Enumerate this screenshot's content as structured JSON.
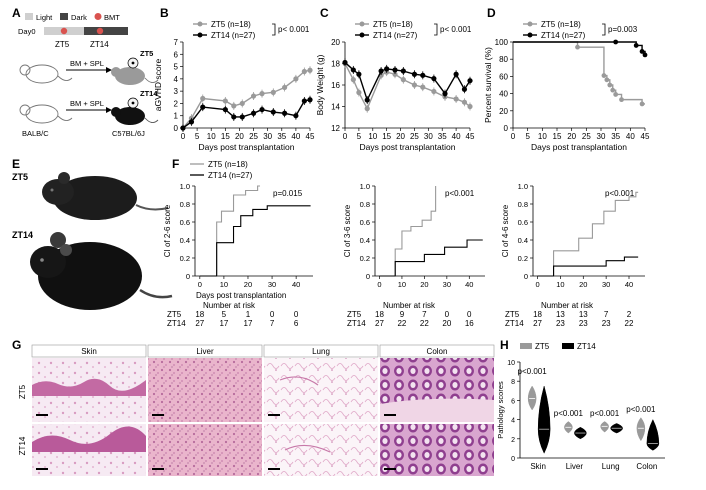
{
  "panels": {
    "A": {
      "letter": "A",
      "legend": [
        "Light",
        "Dark",
        "BMT"
      ],
      "day0": "Day0",
      "zt5": "ZT5",
      "zt14": "ZT14",
      "bmspl": "BM + SPL",
      "donor": "BALB/C",
      "recipient": "C57BL/6J"
    },
    "B": {
      "letter": "B"
    },
    "C": {
      "letter": "C"
    },
    "D": {
      "letter": "D"
    },
    "E": {
      "letter": "E",
      "label_top": "ZT5",
      "label_bottom": "ZT14"
    },
    "F": {
      "letter": "F",
      "nar_title": "Number at risk",
      "xlabel": "Days post transplantation"
    },
    "G": {
      "letter": "G",
      "tissues": [
        "Skin",
        "Liver",
        "Lung",
        "Colon"
      ],
      "rows": [
        "ZT5",
        "ZT14"
      ]
    },
    "H": {
      "letter": "H",
      "legend": [
        "ZT5",
        "ZT14"
      ],
      "ylabel": "Pathology scores",
      "pvalues": [
        "p<0.001",
        "p<0.001",
        "p<0.001",
        "p<0.001"
      ]
    }
  },
  "colors": {
    "zt5": "#9a9a9a",
    "zt14": "#000000",
    "he_pink": "#e7a9c6",
    "he_purple": "#a05aa0"
  },
  "chart_data": [
    {
      "id": "B",
      "type": "line",
      "ylabel": "aGVHD score",
      "xlabel": "Days post transplantation",
      "ylim": [
        0,
        7
      ],
      "xlim": [
        0,
        45
      ],
      "xticks": [
        0,
        5,
        10,
        15,
        20,
        25,
        30,
        35,
        40,
        45
      ],
      "yticks": [
        0,
        1,
        2,
        3,
        4,
        5,
        6,
        7
      ],
      "legend": [
        "ZT5 (n=18)",
        "ZT14 (n=27)"
      ],
      "pvalue": "p< 0.001",
      "series": [
        {
          "name": "ZT5",
          "x": [
            0,
            3,
            7,
            15,
            18,
            21,
            25,
            28,
            32,
            36,
            40,
            43,
            45
          ],
          "y": [
            0,
            0.8,
            2.4,
            2.2,
            1.8,
            2.0,
            2.6,
            2.8,
            2.9,
            3.3,
            4.0,
            4.6,
            4.7
          ]
        },
        {
          "name": "ZT14",
          "x": [
            0,
            3,
            7,
            15,
            18,
            21,
            25,
            28,
            32,
            36,
            40,
            43,
            45
          ],
          "y": [
            0,
            0.5,
            1.7,
            1.5,
            0.9,
            0.9,
            1.2,
            1.5,
            1.3,
            1.2,
            1.0,
            2.2,
            2.3
          ]
        }
      ]
    },
    {
      "id": "C",
      "type": "line",
      "ylabel": "Body Weight (g)",
      "xlabel": "Days post transplantation",
      "ylim": [
        12,
        20
      ],
      "xlim": [
        0,
        45
      ],
      "xticks": [
        0,
        5,
        10,
        15,
        20,
        25,
        30,
        35,
        40,
        45
      ],
      "yticks": [
        12,
        14,
        16,
        18,
        20
      ],
      "legend": [
        "ZT5 (n=18)",
        "ZT14 (n=27)"
      ],
      "pvalue": "p< 0.001",
      "series": [
        {
          "name": "ZT5",
          "x": [
            0,
            3,
            5,
            8,
            13,
            15,
            18,
            21,
            25,
            28,
            32,
            36,
            40,
            43,
            45
          ],
          "y": [
            18.0,
            16.5,
            15.3,
            13.8,
            16.9,
            17.2,
            17.0,
            16.5,
            16.0,
            15.8,
            15.4,
            14.9,
            14.7,
            14.4,
            14.0
          ]
        },
        {
          "name": "ZT14",
          "x": [
            0,
            3,
            5,
            8,
            13,
            15,
            18,
            21,
            25,
            28,
            32,
            36,
            40,
            43,
            45
          ],
          "y": [
            18.1,
            17.4,
            17.0,
            14.6,
            17.3,
            17.5,
            17.4,
            17.3,
            17.0,
            16.9,
            16.6,
            15.2,
            17.0,
            15.6,
            16.4
          ]
        }
      ]
    },
    {
      "id": "D",
      "type": "line",
      "ylabel": "Percent survival (%)",
      "xlabel": "Days post transplantation",
      "ylim": [
        0,
        100
      ],
      "xlim": [
        0,
        45
      ],
      "xticks": [
        0,
        5,
        10,
        15,
        20,
        25,
        30,
        35,
        40,
        45
      ],
      "yticks": [
        0,
        20,
        40,
        60,
        80,
        100
      ],
      "legend": [
        "ZT5 (n=18)",
        "ZT14 (n=27)"
      ],
      "pvalue": "p=0.003",
      "series": [
        {
          "name": "ZT5",
          "x": [
            0,
            22,
            31,
            32,
            33,
            34,
            35,
            37,
            44,
            45
          ],
          "y": [
            100,
            94,
            61,
            56,
            50,
            44,
            39,
            33,
            28,
            28
          ]
        },
        {
          "name": "ZT14",
          "x": [
            0,
            35,
            42,
            44,
            45
          ],
          "y": [
            100,
            100,
            96,
            89,
            85
          ]
        }
      ]
    },
    {
      "id": "F1",
      "type": "line",
      "ylabel": "CI of 2-6 score",
      "ylim": [
        0,
        1.0
      ],
      "xlim": [
        -2,
        47
      ],
      "xticks": [
        0,
        10,
        20,
        30,
        40
      ],
      "yticks": [
        0,
        0.2,
        0.4,
        0.6,
        0.8,
        1.0
      ],
      "legend": [
        "ZT5 (n=18)",
        "ZT14 (n=27)"
      ],
      "pvalue": "p=0.015",
      "series": [
        {
          "name": "ZT5",
          "x": [
            0,
            7,
            7,
            9,
            9,
            14,
            14,
            19,
            19,
            24,
            24,
            25
          ],
          "y": [
            0,
            0,
            0.6,
            0.6,
            0.72,
            0.72,
            0.9,
            0.9,
            0.95,
            0.95,
            1.0,
            1.0
          ]
        },
        {
          "name": "ZT14",
          "x": [
            0,
            7,
            7,
            14,
            14,
            17,
            17,
            22,
            22,
            28,
            28,
            46
          ],
          "y": [
            0,
            0,
            0.37,
            0.37,
            0.55,
            0.55,
            0.67,
            0.67,
            0.74,
            0.74,
            0.78,
            0.78
          ]
        }
      ],
      "at_risk": {
        "times": [
          "0",
          "10",
          "20",
          "30",
          "40"
        ],
        "rows": [
          {
            "label": "ZT5",
            "values": [
              "18",
              "5",
              "1",
              "0",
              "0"
            ]
          },
          {
            "label": "ZT14",
            "values": [
              "27",
              "17",
              "17",
              "7",
              "6"
            ]
          }
        ]
      }
    },
    {
      "id": "F2",
      "type": "line",
      "ylabel": "CI of 3-6 score",
      "ylim": [
        0,
        1.0
      ],
      "xlim": [
        -2,
        47
      ],
      "xticks": [
        0,
        10,
        20,
        30,
        40
      ],
      "yticks": [
        0,
        0.2,
        0.4,
        0.6,
        0.8,
        1.0
      ],
      "pvalue": "p<0.001",
      "series": [
        {
          "name": "ZT5",
          "x": [
            0,
            7,
            7,
            10,
            10,
            14,
            14,
            19,
            19,
            23,
            23,
            25,
            25
          ],
          "y": [
            0,
            0,
            0.3,
            0.3,
            0.5,
            0.5,
            0.55,
            0.55,
            0.62,
            0.62,
            0.72,
            0.72,
            1.0
          ]
        },
        {
          "name": "ZT14",
          "x": [
            0,
            7,
            7,
            20,
            20,
            29,
            29,
            39,
            39,
            46
          ],
          "y": [
            0,
            0,
            0.16,
            0.16,
            0.24,
            0.24,
            0.32,
            0.32,
            0.4,
            0.4
          ]
        }
      ],
      "at_risk": {
        "times": [
          "0",
          "10",
          "20",
          "30",
          "40"
        ],
        "rows": [
          {
            "label": "ZT5",
            "values": [
              "18",
              "9",
              "7",
              "0",
              "0"
            ]
          },
          {
            "label": "ZT14",
            "values": [
              "27",
              "22",
              "22",
              "20",
              "16"
            ]
          }
        ]
      }
    },
    {
      "id": "F3",
      "type": "line",
      "ylabel": "CI of 4-6 score",
      "ylim": [
        0,
        1.0
      ],
      "xlim": [
        -2,
        47
      ],
      "xticks": [
        0,
        10,
        20,
        30,
        40
      ],
      "yticks": [
        0,
        0.2,
        0.4,
        0.6,
        0.8,
        1.0
      ],
      "pvalue": "p<0.001",
      "series": [
        {
          "name": "ZT5",
          "x": [
            0,
            7,
            7,
            18,
            18,
            24,
            24,
            29,
            29,
            34,
            34,
            40,
            40,
            43,
            43,
            44
          ],
          "y": [
            0,
            0,
            0.28,
            0.28,
            0.42,
            0.42,
            0.58,
            0.58,
            0.72,
            0.72,
            0.84,
            0.84,
            0.88,
            0.88,
            0.93,
            0.93
          ]
        },
        {
          "name": "ZT14",
          "x": [
            0,
            7,
            7,
            30,
            30,
            38,
            38,
            44
          ],
          "y": [
            0,
            0,
            0.11,
            0.11,
            0.17,
            0.17,
            0.21,
            0.21
          ]
        }
      ],
      "at_risk": {
        "times": [
          "0",
          "10",
          "20",
          "30",
          "40"
        ],
        "rows": [
          {
            "label": "ZT5",
            "values": [
              "18",
              "13",
              "13",
              "7",
              "2"
            ]
          },
          {
            "label": "ZT14",
            "values": [
              "27",
              "23",
              "23",
              "23",
              "22"
            ]
          }
        ]
      }
    },
    {
      "id": "H",
      "type": "violin",
      "ylabel": "Pathology scores",
      "ylim": [
        0,
        10
      ],
      "yticks": [
        0,
        2,
        4,
        6,
        8,
        10
      ],
      "categories": [
        "Skin",
        "Liver",
        "Lung",
        "Colon"
      ],
      "series": [
        {
          "name": "ZT5",
          "medians": [
            6.2,
            3.2,
            3.3,
            3.1
          ],
          "min": [
            5.0,
            2.6,
            2.7,
            1.8
          ],
          "max": [
            7.5,
            3.8,
            3.8,
            4.2
          ]
        },
        {
          "name": "ZT14",
          "medians": [
            3.0,
            2.6,
            3.1,
            1.5
          ],
          "min": [
            0.5,
            2.0,
            2.6,
            0.8
          ],
          "max": [
            7.5,
            3.2,
            3.6,
            4.0
          ]
        }
      ]
    }
  ]
}
